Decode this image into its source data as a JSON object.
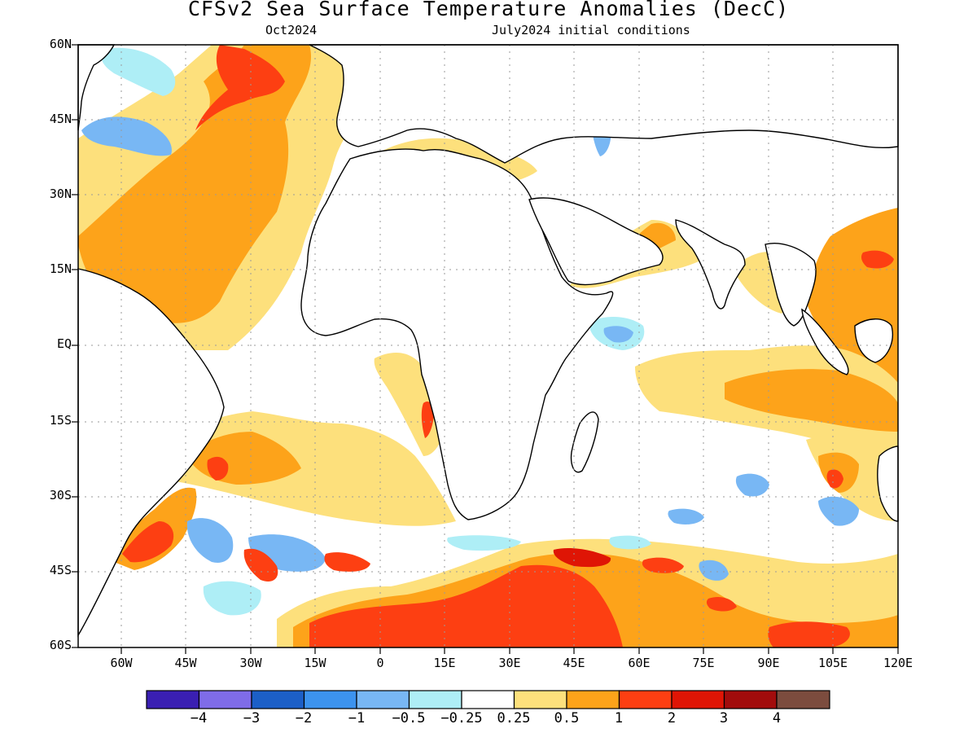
{
  "title": "CFSv2 Sea Surface Temperature Anomalies (DecC)",
  "subtitle_left": "Oct2024",
  "subtitle_right": "July2024 initial conditions",
  "lat_labels": [
    "60N",
    "45N",
    "30N",
    "15N",
    "EQ",
    "15S",
    "30S",
    "45S",
    "60S"
  ],
  "lon_labels": [
    "60W",
    "45W",
    "30W",
    "15W",
    "0",
    "15E",
    "30E",
    "45E",
    "60E",
    "75E",
    "90E",
    "105E",
    "120E"
  ],
  "colorbar": {
    "colors": [
      "#3a1fb2",
      "#7f6ce8",
      "#1c5fc7",
      "#3c93ee",
      "#78b7f4",
      "#aeeef6",
      "#ffffff",
      "#fde07c",
      "#fda31a",
      "#fd3f12",
      "#df1505",
      "#a20c0c",
      "#7c4c3e"
    ],
    "labels": [
      "−4",
      "−3",
      "−2",
      "−1",
      "−0.5",
      "−0.25",
      "0.25",
      "0.5",
      "1",
      "2",
      "3",
      "4"
    ]
  },
  "colors": {
    "pos1": "#fde07c",
    "pos2": "#fda31a",
    "pos3": "#fd3f12",
    "pos4": "#df1505",
    "neg1": "#aeeef6",
    "neg2": "#78b7f4",
    "neg3": "#3c93ee",
    "neg4": "#7f6ce8"
  }
}
